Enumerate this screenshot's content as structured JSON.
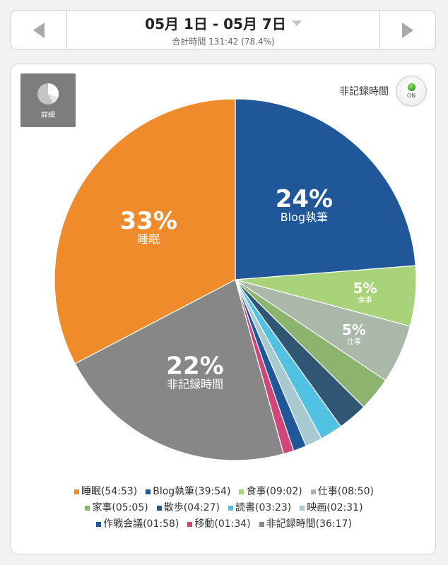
{
  "header": {
    "date_range": "05月 1日 - 05月 7日",
    "total": "合計時間 131:42 (78.4%)"
  },
  "card": {
    "detail_label": "詳細",
    "toggle_label": "非記録時間",
    "toggle_state": "ON"
  },
  "chart_data": {
    "type": "pie",
    "start": "top-center",
    "direction": "clockwise",
    "slices": [
      {
        "name": "Blog執筆",
        "legend": "Blog執筆(39:54)",
        "value": 39.9,
        "percent_label": "24%",
        "label": "Blog執筆",
        "color": "#1f5799"
      },
      {
        "name": "食事",
        "legend": "食事(09:02)",
        "value": 9.0333,
        "percent_label": "5%",
        "label": "食事",
        "color": "#a9d37a"
      },
      {
        "name": "仕事",
        "legend": "仕事(08:50)",
        "value": 8.8333,
        "percent_label": "5%",
        "label": "仕事",
        "color": "#a9b8a9"
      },
      {
        "name": "家事",
        "legend": "家事(05:05)",
        "value": 5.0833,
        "percent_label": "",
        "label": "",
        "color": "#8db46e"
      },
      {
        "name": "散歩",
        "legend": "散歩(04:27)",
        "value": 4.45,
        "percent_label": "",
        "label": "",
        "color": "#2f5774"
      },
      {
        "name": "読書",
        "legend": "読書(03:23)",
        "value": 3.3833,
        "percent_label": "",
        "label": "",
        "color": "#52c2e3"
      },
      {
        "name": "映画",
        "legend": "映画(02:31)",
        "value": 2.5167,
        "percent_label": "",
        "label": "",
        "color": "#a9c9d0"
      },
      {
        "name": "作戦会議",
        "legend": "作戦会議(01:58)",
        "value": 1.9667,
        "percent_label": "",
        "label": "",
        "color": "#1f5799"
      },
      {
        "name": "移動",
        "legend": "移動(01:34)",
        "value": 1.5667,
        "percent_label": "",
        "label": "",
        "color": "#d2457a"
      },
      {
        "name": "非記録時間",
        "legend": "非記録時間(36:17)",
        "value": 36.2833,
        "percent_label": "22%",
        "label": "非記録時間",
        "color": "#878787"
      },
      {
        "name": "睡眠",
        "legend": "睡眠(54:53)",
        "value": 54.8833,
        "percent_label": "33%",
        "label": "睡眠",
        "color": "#ef8b2a"
      }
    ],
    "legend_order": [
      "睡眠",
      "Blog執筆",
      "食事",
      "仕事",
      "家事",
      "散歩",
      "読書",
      "映画",
      "作戦会議",
      "移動",
      "非記録時間"
    ]
  }
}
